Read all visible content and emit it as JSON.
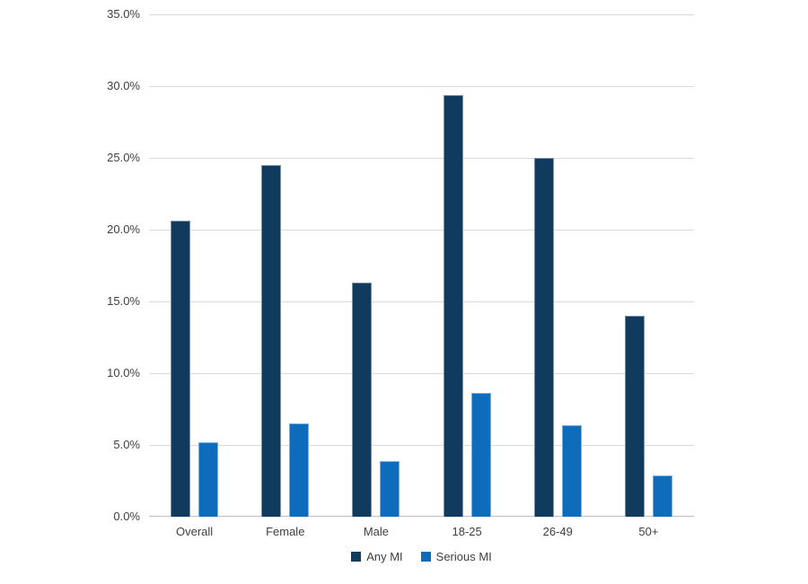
{
  "chart_data": {
    "type": "bar",
    "title": "",
    "xlabel": "",
    "ylabel": "",
    "categories": [
      "Overall",
      "Female",
      "Male",
      "18-25",
      "26-49",
      "50+"
    ],
    "series": [
      {
        "name": "Any MI",
        "color": "#103a5e",
        "values": [
          20.6,
          24.5,
          16.3,
          29.4,
          25.0,
          14.0
        ]
      },
      {
        "name": "Serious MI",
        "color": "#0f6cbd",
        "values": [
          5.2,
          6.5,
          3.9,
          8.6,
          6.4,
          2.9
        ]
      }
    ],
    "ylim": [
      0,
      35
    ],
    "ytick_step": 5,
    "ytick_labels": [
      "0.0%",
      "5.0%",
      "10.0%",
      "15.0%",
      "20.0%",
      "25.0%",
      "30.0%",
      "35.0%"
    ],
    "grid": true,
    "legend_position": "bottom"
  },
  "colors": {
    "background": "#ffffff",
    "gridline": "#d9d9d9",
    "axis_line": "#bfbfbf",
    "text": "#404040"
  }
}
